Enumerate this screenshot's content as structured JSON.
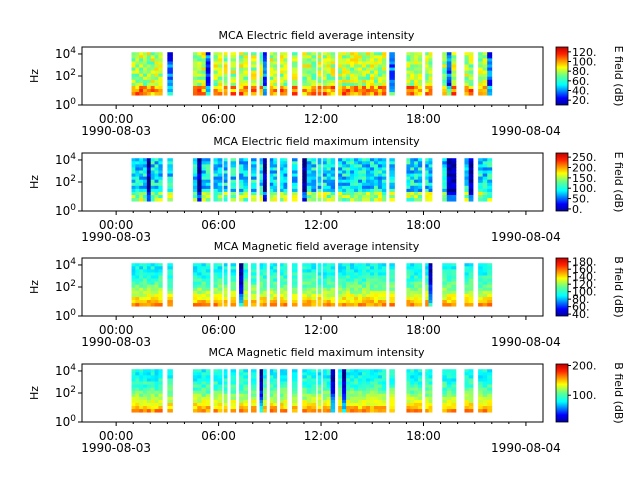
{
  "chart_data": [
    {
      "type": "heatmap",
      "title": "MCA  Electric field average intensity",
      "ylabel": "Hz",
      "colorbar_label": "E field (dB)",
      "colorbar_ticks": [
        "20.",
        "40.",
        "60.",
        "80.",
        "100.",
        "120."
      ],
      "colorbar_range": [
        10,
        130
      ],
      "y_tick_labels": [
        "10^0",
        "10^2",
        "10^4"
      ],
      "seed": 11,
      "bias": 0.55
    },
    {
      "type": "heatmap",
      "title": "MCA  Electric field maximum intensity",
      "ylabel": "Hz",
      "colorbar_label": "E field (dB)",
      "colorbar_ticks": [
        "0.",
        "50.",
        "100.",
        "150.",
        "200.",
        "250."
      ],
      "colorbar_range": [
        -10,
        270
      ],
      "y_tick_labels": [
        "10^0",
        "10^2",
        "10^4"
      ],
      "seed": 23,
      "bias": 0.35
    },
    {
      "type": "heatmap",
      "title": "MCA  Magnetic field average intensity",
      "ylabel": "Hz",
      "colorbar_label": "B field (dB)",
      "colorbar_ticks": [
        "40.",
        "60.",
        "80.",
        "100.",
        "120.",
        "140.",
        "160.",
        "180."
      ],
      "colorbar_range": [
        35,
        190
      ],
      "y_tick_labels": [
        "10^0",
        "10^2",
        "10^4"
      ],
      "seed": 37,
      "bias": 0.45
    },
    {
      "type": "heatmap",
      "title": "MCA  Magnetic field maximum intensity",
      "ylabel": "Hz",
      "colorbar_label": "B field (dB)",
      "colorbar_ticks": [
        "100.",
        "200."
      ],
      "colorbar_range": [
        10,
        205
      ],
      "y_tick_labels": [
        "10^0",
        "10^2",
        "10^4"
      ],
      "seed": 51,
      "bias": 0.45
    }
  ],
  "x_axis": {
    "tick_labels": [
      "00:00",
      "06:00",
      "12:00",
      "18:00",
      ""
    ],
    "date_labels": [
      "1990-08-03",
      "1990-08-04"
    ],
    "range_hours": [
      -2,
      25
    ]
  },
  "data_segments_hours": [
    [
      0.9,
      2.7
    ],
    [
      3.0,
      3.3
    ],
    [
      4.5,
      5.5
    ],
    [
      5.7,
      6.2
    ],
    [
      6.3,
      6.5
    ],
    [
      6.7,
      7.0
    ],
    [
      7.2,
      7.7
    ],
    [
      7.9,
      8.2
    ],
    [
      8.4,
      8.8
    ],
    [
      9.0,
      9.4
    ],
    [
      9.6,
      10.0
    ],
    [
      10.3,
      10.6
    ],
    [
      10.9,
      11.7
    ],
    [
      11.8,
      12.0
    ],
    [
      12.1,
      12.8
    ],
    [
      13.0,
      15.8
    ],
    [
      16.0,
      16.3
    ],
    [
      17.0,
      17.9
    ],
    [
      18.1,
      18.5
    ],
    [
      19.1,
      19.9
    ],
    [
      20.4,
      20.9
    ],
    [
      21.2,
      22.0
    ]
  ],
  "colors": {
    "jet": [
      "#00007f",
      "#0000ff",
      "#00ffff",
      "#7fff7f",
      "#ffff00",
      "#ff0000",
      "#7f0000"
    ]
  }
}
